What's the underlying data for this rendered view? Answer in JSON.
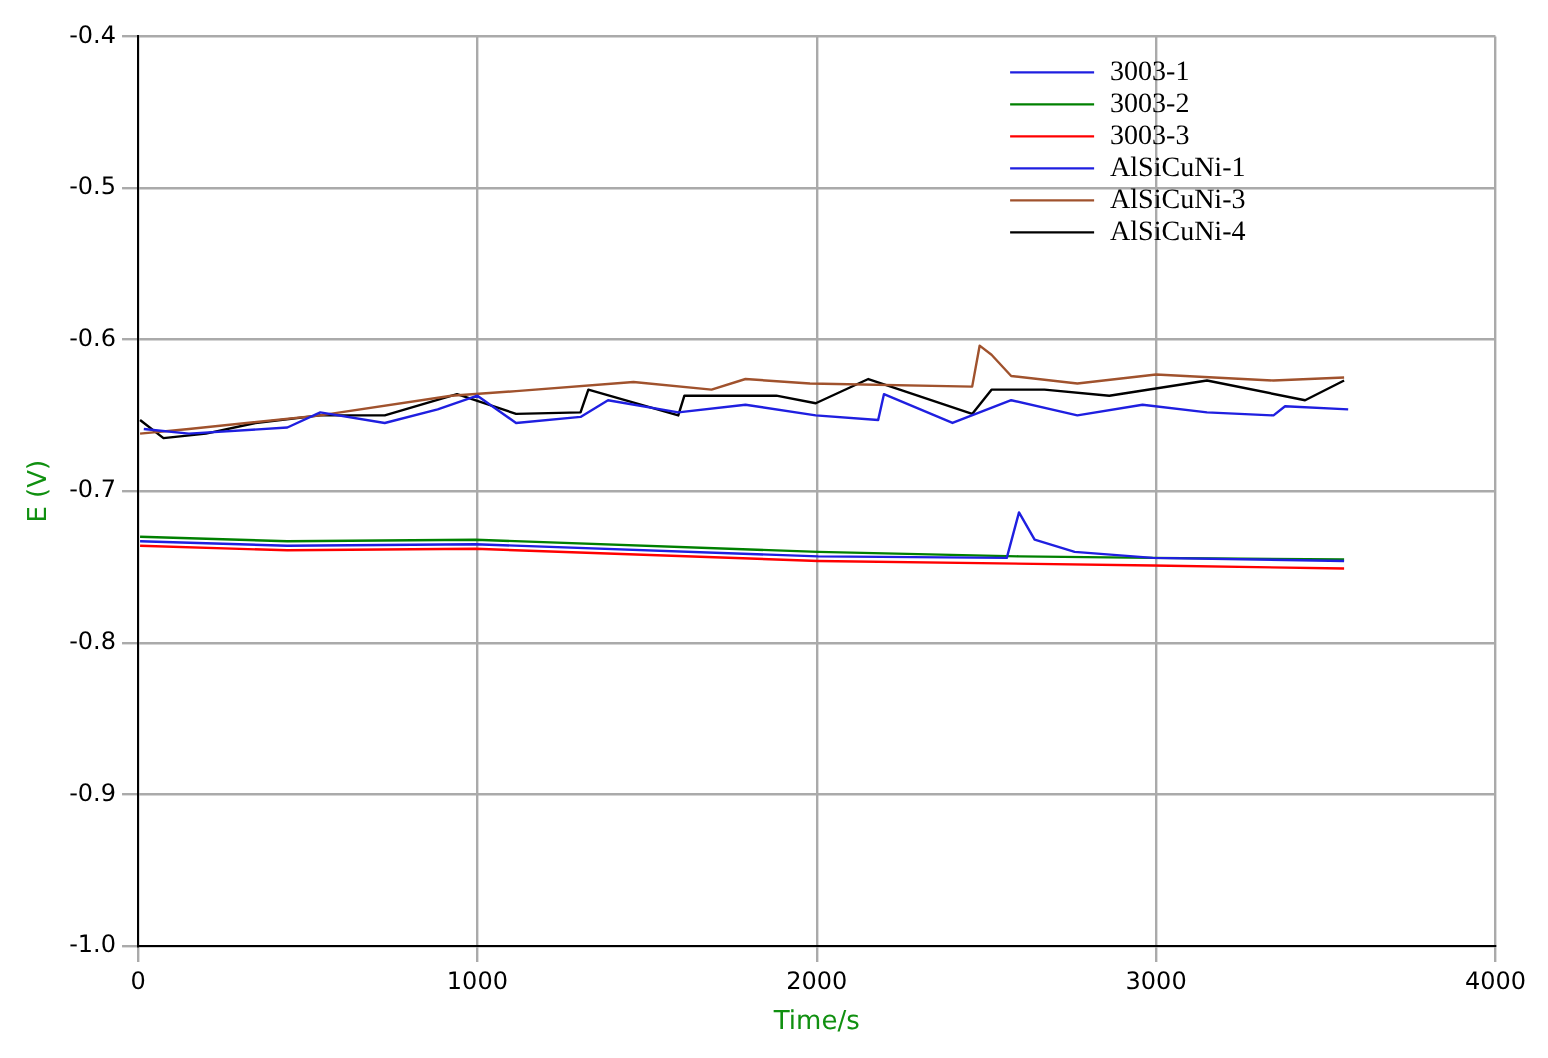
{
  "chart_data": {
    "type": "line",
    "xlabel": "Time/s",
    "ylabel": "E (V)",
    "xlim": [
      0,
      4000
    ],
    "xticks": [
      0,
      1000,
      2000,
      3000,
      4000
    ],
    "ylim": [
      -1,
      -0.4
    ],
    "yticks": [
      {
        "value": -1,
        "label": "-1.0"
      },
      -0.9,
      -0.8,
      -0.7,
      -0.6,
      -0.5,
      -0.4
    ],
    "grid": true,
    "legend": "top right",
    "marker": "none",
    "series": [
      {
        "name": "3003-1",
        "color": "#1f1fe0",
        "x": [
          6,
          440,
          994,
          2004,
          2560,
          2596,
          2642,
          2760,
          2990,
          3554
        ],
        "values": [
          -0.733,
          -0.736,
          -0.735,
          -0.743,
          -0.744,
          -0.714,
          -0.732,
          -0.74,
          -0.744,
          -0.746
        ]
      },
      {
        "name": "3003-2",
        "color": "#008000",
        "x": [
          6,
          440,
          994,
          2004,
          2596,
          2990,
          3554
        ],
        "values": [
          -0.73,
          -0.733,
          -0.732,
          -0.74,
          -0.743,
          -0.744,
          -0.745
        ]
      },
      {
        "name": "3003-3",
        "color": "#ff0000",
        "x": [
          6,
          440,
          994,
          2004,
          2990,
          3554
        ],
        "values": [
          -0.736,
          -0.739,
          -0.738,
          -0.746,
          -0.749,
          -0.751
        ]
      },
      {
        "name": "AlSiCuNi-1",
        "color": "#1f1fe0",
        "x": [
          17,
          150,
          440,
          537,
          727,
          883,
          1000,
          1114,
          1304,
          1385,
          1592,
          1790,
          1997,
          2181,
          2198,
          2400,
          2573,
          2768,
          2960,
          3150,
          3346,
          3380,
          3566
        ],
        "values": [
          -0.659,
          -0.662,
          -0.658,
          -0.648,
          -0.655,
          -0.646,
          -0.637,
          -0.655,
          -0.651,
          -0.64,
          -0.648,
          -0.643,
          -0.65,
          -0.653,
          -0.636,
          -0.655,
          -0.64,
          -0.65,
          -0.643,
          -0.648,
          -0.65,
          -0.644,
          -0.646
        ]
      },
      {
        "name": "AlSiCuNi-3",
        "color": "#a0522d",
        "x": [
          6,
          150,
          537,
          923,
          1114,
          1460,
          1690,
          1790,
          1980,
          2458,
          2480,
          2515,
          2573,
          2768,
          3000,
          3346,
          3554
        ],
        "values": [
          -0.662,
          -0.659,
          -0.65,
          -0.637,
          -0.634,
          -0.628,
          -0.633,
          -0.626,
          -0.629,
          -0.631,
          -0.604,
          -0.61,
          -0.624,
          -0.629,
          -0.623,
          -0.627,
          -0.625
        ]
      },
      {
        "name": "AlSiCuNi-4",
        "color": "#000000",
        "x": [
          6,
          75,
          200,
          346,
          537,
          727,
          940,
          1114,
          1304,
          1327,
          1592,
          1610,
          1881,
          1997,
          2152,
          2458,
          2515,
          2671,
          2862,
          3150,
          3439,
          3554
        ],
        "values": [
          -0.653,
          -0.665,
          -0.662,
          -0.655,
          -0.65,
          -0.65,
          -0.636,
          -0.649,
          -0.648,
          -0.633,
          -0.65,
          -0.637,
          -0.637,
          -0.642,
          -0.626,
          -0.649,
          -0.633,
          -0.633,
          -0.637,
          -0.627,
          -0.64,
          -0.627
        ]
      }
    ]
  }
}
